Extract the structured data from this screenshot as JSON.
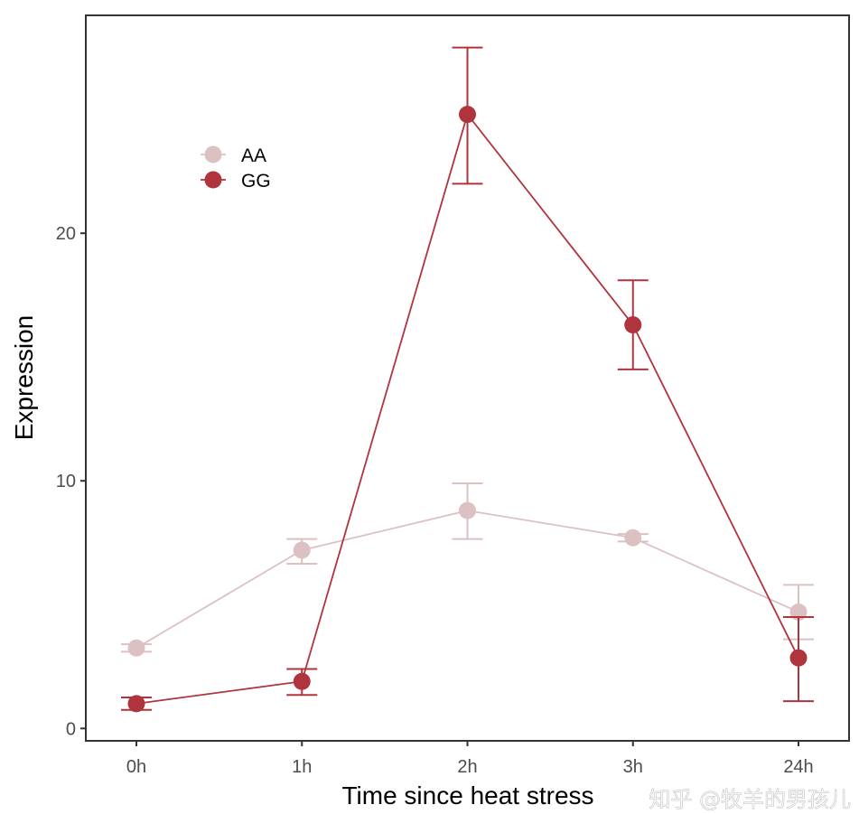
{
  "chart_data": {
    "type": "line",
    "title": "",
    "xlabel": "Time since heat stress",
    "ylabel": "Expression",
    "categories": [
      "0h",
      "1h",
      "2h",
      "3h",
      "24h"
    ],
    "ylim": [
      -0.5,
      28.8
    ],
    "yticks": [
      0,
      10,
      20
    ],
    "grid": false,
    "legend_position": "top-left",
    "series": [
      {
        "name": "AA",
        "color": "#dcc1c2",
        "values": [
          3.25,
          7.2,
          8.8,
          7.7,
          4.7
        ],
        "err_low": [
          3.1,
          6.65,
          7.65,
          7.55,
          3.6
        ],
        "err_high": [
          3.4,
          7.65,
          9.9,
          7.85,
          5.8
        ]
      },
      {
        "name": "GG",
        "color": "#b0343e",
        "values": [
          1.0,
          1.9,
          24.8,
          16.3,
          2.85
        ],
        "err_low": [
          0.75,
          1.35,
          22.0,
          14.5,
          1.1
        ],
        "err_high": [
          1.25,
          2.4,
          27.5,
          18.1,
          4.5
        ]
      }
    ]
  },
  "watermark": "知乎 @牧羊的男孩儿"
}
